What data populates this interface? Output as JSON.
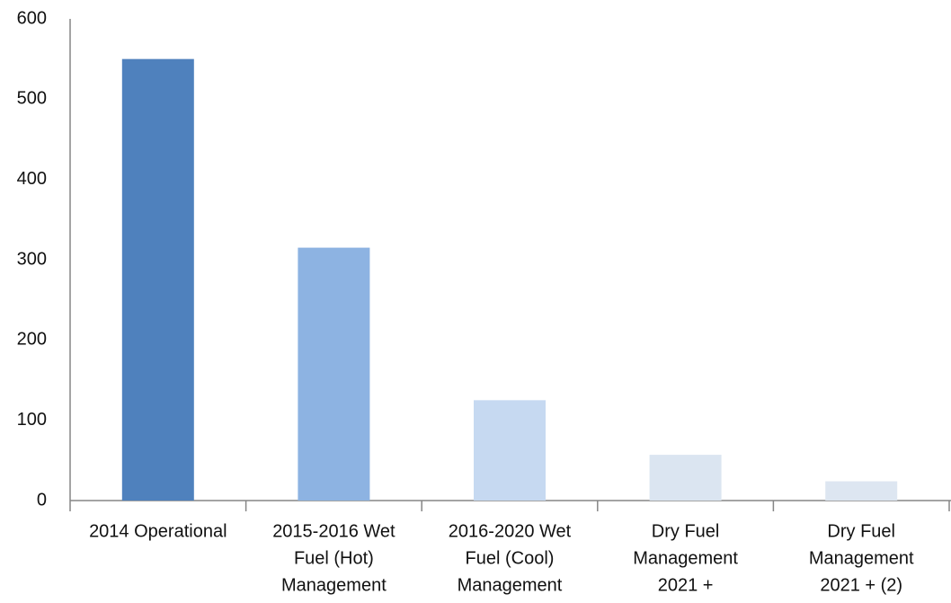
{
  "chart_data": {
    "type": "bar",
    "categories": [
      [
        "2014 Operational"
      ],
      [
        "2015-2016 Wet",
        "Fuel (Hot)",
        "Management"
      ],
      [
        "2016-2020 Wet",
        "Fuel (Cool)",
        "Management"
      ],
      [
        "Dry Fuel",
        "Management",
        "2021 +"
      ],
      [
        "Dry Fuel",
        "Management",
        "2021 + (2)"
      ]
    ],
    "values": [
      550,
      315,
      125,
      57,
      24
    ],
    "colors": [
      "#4f81bd",
      "#8db3e2",
      "#c6d9f1",
      "#dbe5f1",
      "#dde6f1"
    ],
    "ylim": [
      0,
      600
    ],
    "yticks": [
      0,
      100,
      200,
      300,
      400,
      500,
      600
    ],
    "grid": false
  }
}
